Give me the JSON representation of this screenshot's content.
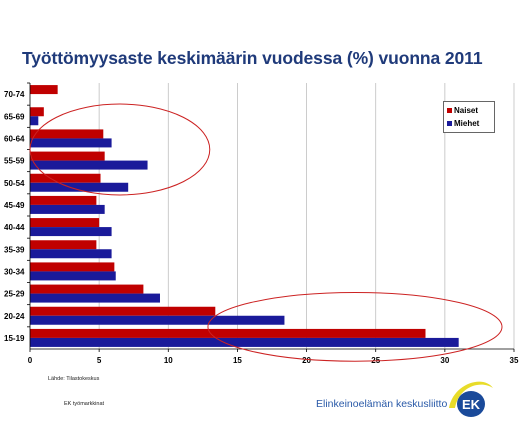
{
  "page": {
    "source": "Lähde: Tilastokeskus",
    "department": "EK työmarkkinat",
    "organization": "Elinkeinoelämän keskusliitto",
    "logo_text": "EK"
  },
  "colors": {
    "naiset": "#c00000",
    "miehet": "#1a1a9a",
    "title": "#1f3a7a",
    "grid": "#bfbfbf",
    "highlight": "#cc2222",
    "org_text": "#2a5aa8",
    "logo_blue": "#1a4a9a",
    "logo_yellow": "#e8dc2a"
  },
  "chart_data": {
    "type": "bar",
    "orientation": "horizontal",
    "title": "Työttömyysaste keskimäärin vuodessa (%) vuonna 2011",
    "categories": [
      "70-74",
      "65-69",
      "60-64",
      "55-59",
      "50-54",
      "45-49",
      "40-44",
      "35-39",
      "30-34",
      "25-29",
      "20-24",
      "15-19"
    ],
    "series": [
      {
        "name": "Naiset",
        "color": "#c00000",
        "values": [
          2.0,
          1.0,
          5.3,
          5.4,
          5.1,
          4.8,
          5.0,
          4.8,
          6.1,
          8.2,
          13.4,
          28.6
        ]
      },
      {
        "name": "Miehet",
        "color": "#1a1a9a",
        "values": [
          null,
          0.6,
          5.9,
          8.5,
          7.1,
          5.4,
          5.9,
          5.9,
          6.2,
          9.4,
          18.4,
          31.0
        ]
      }
    ],
    "xlim": [
      0,
      35
    ],
    "xticks": [
      0,
      5,
      10,
      15,
      20,
      25,
      30,
      35
    ],
    "grid": true,
    "legend_position": "top-right",
    "annotations": [
      "ellipse around 55-64 age groups",
      "ellipse around 15-24 age groups"
    ]
  }
}
